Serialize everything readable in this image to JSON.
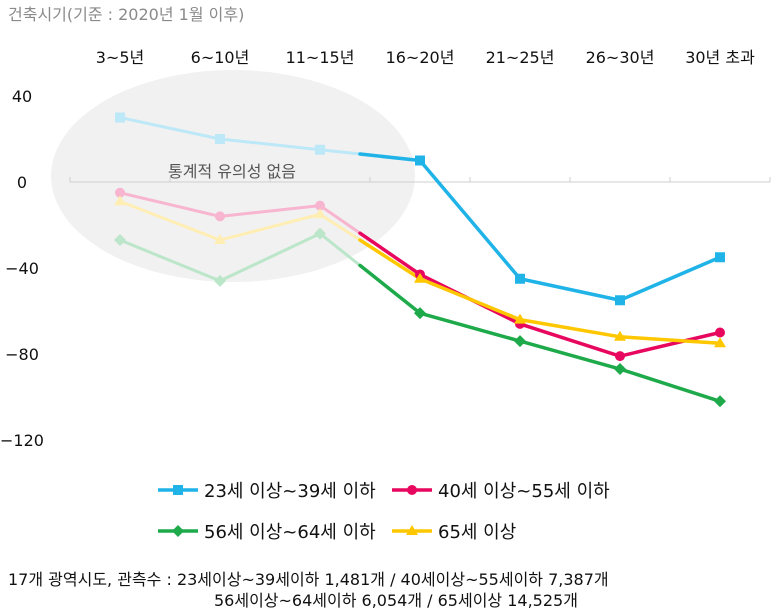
{
  "chart_data": {
    "type": "line",
    "axis_title": "건축시기(기준 : 2020년 1월 이후)",
    "categories": [
      "3~5년",
      "6~10년",
      "11~15년",
      "16~20년",
      "21~25년",
      "26~30년",
      "30년 초과"
    ],
    "y_ticks": [
      40,
      0,
      -40,
      -80,
      -120
    ],
    "y_tick_labels": [
      "40",
      "0",
      "−40",
      "−80",
      "−120"
    ],
    "ylim": [
      -120,
      40
    ],
    "grid": false,
    "annotation": "통계적 유의성 없음",
    "series": [
      {
        "name": "23세 이상~39세 이하",
        "color": "#1fb3e8",
        "marker": "square",
        "values": [
          30,
          20,
          15,
          10,
          -45,
          -55,
          -35
        ]
      },
      {
        "name": "40세 이상~55세 이하",
        "color": "#e8075f",
        "marker": "circle",
        "values": [
          -5,
          -16,
          -11,
          -43,
          -66,
          -81,
          -70
        ]
      },
      {
        "name": "56세 이상~64세 이하",
        "color": "#1eaa4a",
        "marker": "diamond",
        "values": [
          -27,
          -46,
          -24,
          -61,
          -74,
          -87,
          -102
        ]
      },
      {
        "name": "65세 이상",
        "color": "#ffc700",
        "marker": "triangle",
        "values": [
          -9,
          -27,
          -15,
          -45,
          -64,
          -72,
          -75
        ]
      }
    ],
    "not_significant_points": 3
  },
  "footnote": {
    "line1": "17개 광역시도, 관측수 : 23세이상~39세이하 1,481개 / 40세이상~55세이하 7,387개",
    "line2": "56세이상~64세이하 6,054개 / 65세이상 14,525개"
  }
}
